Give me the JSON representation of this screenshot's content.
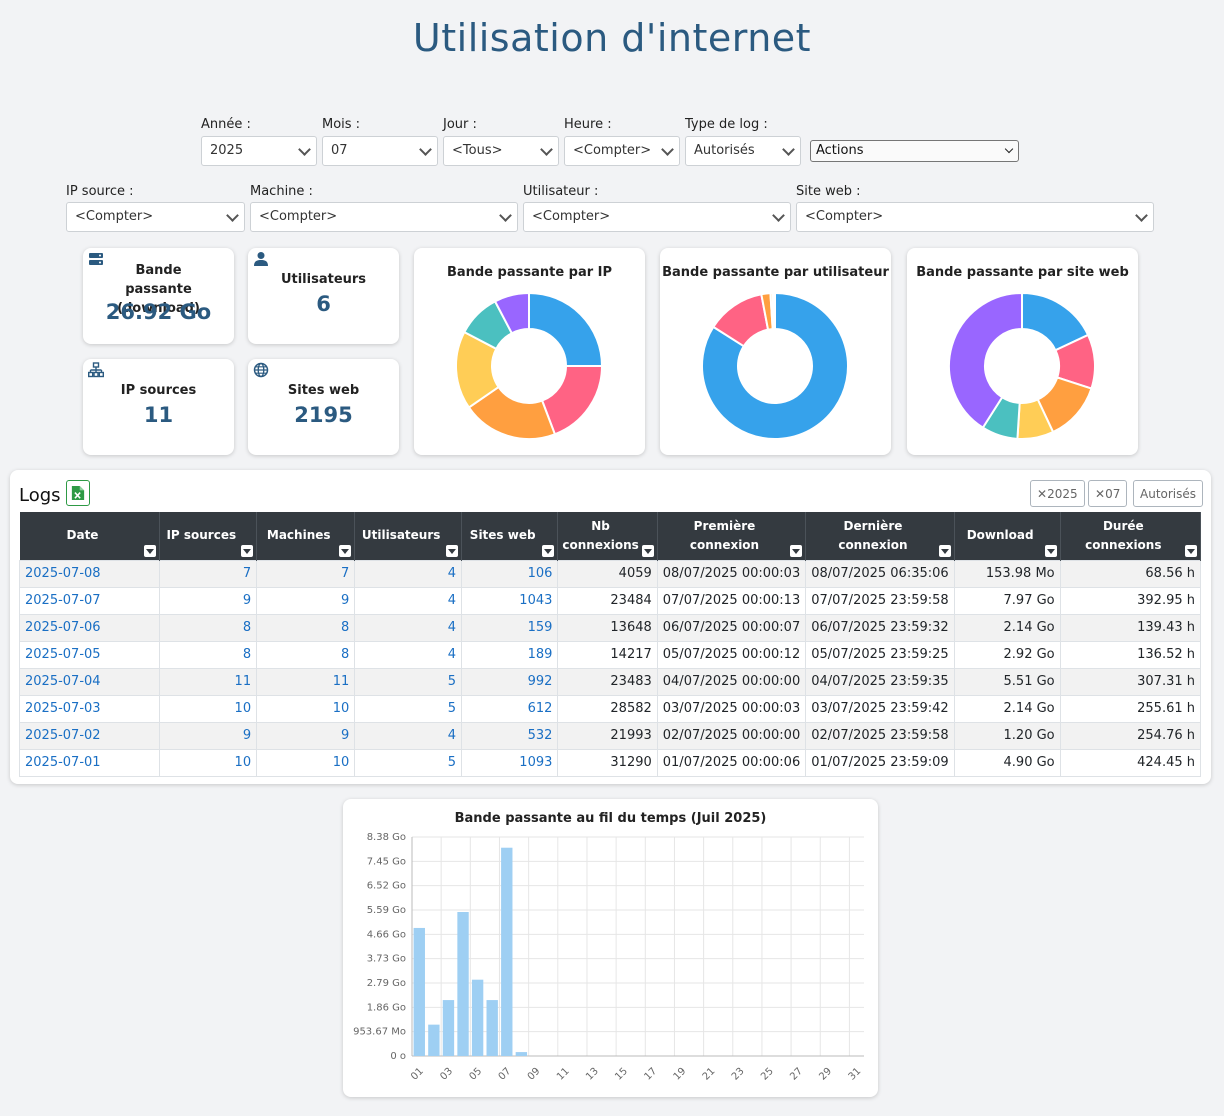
{
  "page_title": "Utilisation d'internet",
  "filters": {
    "annee": {
      "label": "Année :",
      "value": "2025"
    },
    "mois": {
      "label": "Mois :",
      "value": "07"
    },
    "jour": {
      "label": "Jour :",
      "value": "<Tous>"
    },
    "heure": {
      "label": "Heure :",
      "value": "<Compter>"
    },
    "type_log": {
      "label": "Type de log :",
      "value": "Autorisés"
    },
    "actions": {
      "value": "Actions"
    },
    "ip_source": {
      "label": "IP source :",
      "value": "<Compter>"
    },
    "machine": {
      "label": "Machine :",
      "value": "<Compter>"
    },
    "utilisateur": {
      "label": "Utilisateur :",
      "value": "<Compter>"
    },
    "site_web": {
      "label": "Site web :",
      "value": "<Compter>"
    }
  },
  "stats": {
    "bandwidth": {
      "title": "Bande passante (download)",
      "value": "26.92 Go"
    },
    "users": {
      "title": "Utilisateurs",
      "value": "6"
    },
    "ip_sources": {
      "title": "IP sources",
      "value": "11"
    },
    "websites": {
      "title": "Sites web",
      "value": "2195"
    }
  },
  "colors": {
    "accent": "#2b5a80",
    "link": "#1a6fc4",
    "blue": "#36a2eb",
    "pink": "#ff6384",
    "orange": "#ff9f40",
    "yellow": "#ffcd56",
    "teal": "#4bc0c0",
    "purple": "#9966ff",
    "bar": "#9ecff3"
  },
  "chart_data": [
    {
      "type": "pie",
      "title": "Bande passante par IP",
      "values": [
        26,
        20,
        22,
        18,
        10,
        8
      ],
      "colors": [
        "#36a2eb",
        "#ff6384",
        "#ff9f40",
        "#ffcd56",
        "#4bc0c0",
        "#9966ff"
      ]
    },
    {
      "type": "pie",
      "title": "Bande passante par utilisateur",
      "values": [
        84,
        13,
        2,
        0.5,
        0.3,
        0.2
      ],
      "colors": [
        "#36a2eb",
        "#ff6384",
        "#ff9f40",
        "#ffcd56",
        "#4bc0c0",
        "#9966ff"
      ]
    },
    {
      "type": "pie",
      "title": "Bande passante par site web",
      "values": [
        18,
        12,
        13,
        8,
        8,
        41
      ],
      "colors": [
        "#36a2eb",
        "#ff6384",
        "#ff9f40",
        "#ffcd56",
        "#4bc0c0",
        "#9966ff"
      ]
    },
    {
      "type": "bar",
      "title": "Bande passante au fil du temps (Juil 2025)",
      "categories": [
        "01",
        "02",
        "03",
        "04",
        "05",
        "06",
        "07",
        "08",
        "09",
        "10",
        "11",
        "12",
        "13",
        "14",
        "15",
        "16",
        "17",
        "18",
        "19",
        "20",
        "21",
        "22",
        "23",
        "24",
        "25",
        "26",
        "27",
        "28",
        "29",
        "30",
        "31"
      ],
      "values": [
        4.9,
        1.2,
        2.14,
        5.51,
        2.92,
        2.14,
        7.97,
        0.15,
        0,
        0,
        0,
        0,
        0,
        0,
        0,
        0,
        0,
        0,
        0,
        0,
        0,
        0,
        0,
        0,
        0,
        0,
        0,
        0,
        0,
        0,
        0
      ],
      "unit": "Go",
      "ylim": [
        0,
        8.38
      ],
      "yticks": [
        "0 o",
        "953.67 Mo",
        "1.86 Go",
        "2.79 Go",
        "3.73 Go",
        "4.66 Go",
        "5.59 Go",
        "6.52 Go",
        "7.45 Go",
        "8.38 Go"
      ],
      "xtick_labels": [
        "01",
        "03",
        "05",
        "07",
        "09",
        "11",
        "13",
        "15",
        "17",
        "19",
        "21",
        "23",
        "25",
        "27",
        "29",
        "31"
      ],
      "grid": true
    }
  ],
  "logs": {
    "title": "Logs",
    "tags": [
      "2025",
      "07",
      "Autorisés"
    ],
    "columns": [
      "Date",
      "IP sources",
      "Machines",
      "Utilisateurs",
      "Sites web",
      "Nb connexions",
      "Première connexion",
      "Dernière connexion",
      "Download",
      "Durée connexions"
    ],
    "rows": [
      [
        "2025-07-08",
        "7",
        "7",
        "4",
        "106",
        "4059",
        "08/07/2025 00:00:03",
        "08/07/2025 06:35:06",
        "153.98 Mo",
        "68.56 h"
      ],
      [
        "2025-07-07",
        "9",
        "9",
        "4",
        "1043",
        "23484",
        "07/07/2025 00:00:13",
        "07/07/2025 23:59:58",
        "7.97 Go",
        "392.95 h"
      ],
      [
        "2025-07-06",
        "8",
        "8",
        "4",
        "159",
        "13648",
        "06/07/2025 00:00:07",
        "06/07/2025 23:59:32",
        "2.14 Go",
        "139.43 h"
      ],
      [
        "2025-07-05",
        "8",
        "8",
        "4",
        "189",
        "14217",
        "05/07/2025 00:00:12",
        "05/07/2025 23:59:25",
        "2.92 Go",
        "136.52 h"
      ],
      [
        "2025-07-04",
        "11",
        "11",
        "5",
        "992",
        "23483",
        "04/07/2025 00:00:00",
        "04/07/2025 23:59:35",
        "5.51 Go",
        "307.31 h"
      ],
      [
        "2025-07-03",
        "10",
        "10",
        "5",
        "612",
        "28582",
        "03/07/2025 00:00:03",
        "03/07/2025 23:59:42",
        "2.14 Go",
        "255.61 h"
      ],
      [
        "2025-07-02",
        "9",
        "9",
        "4",
        "532",
        "21993",
        "02/07/2025 00:00:00",
        "02/07/2025 23:59:58",
        "1.20 Go",
        "254.76 h"
      ],
      [
        "2025-07-01",
        "10",
        "10",
        "5",
        "1093",
        "31290",
        "01/07/2025 00:00:06",
        "01/07/2025 23:59:09",
        "4.90 Go",
        "424.45 h"
      ]
    ]
  }
}
